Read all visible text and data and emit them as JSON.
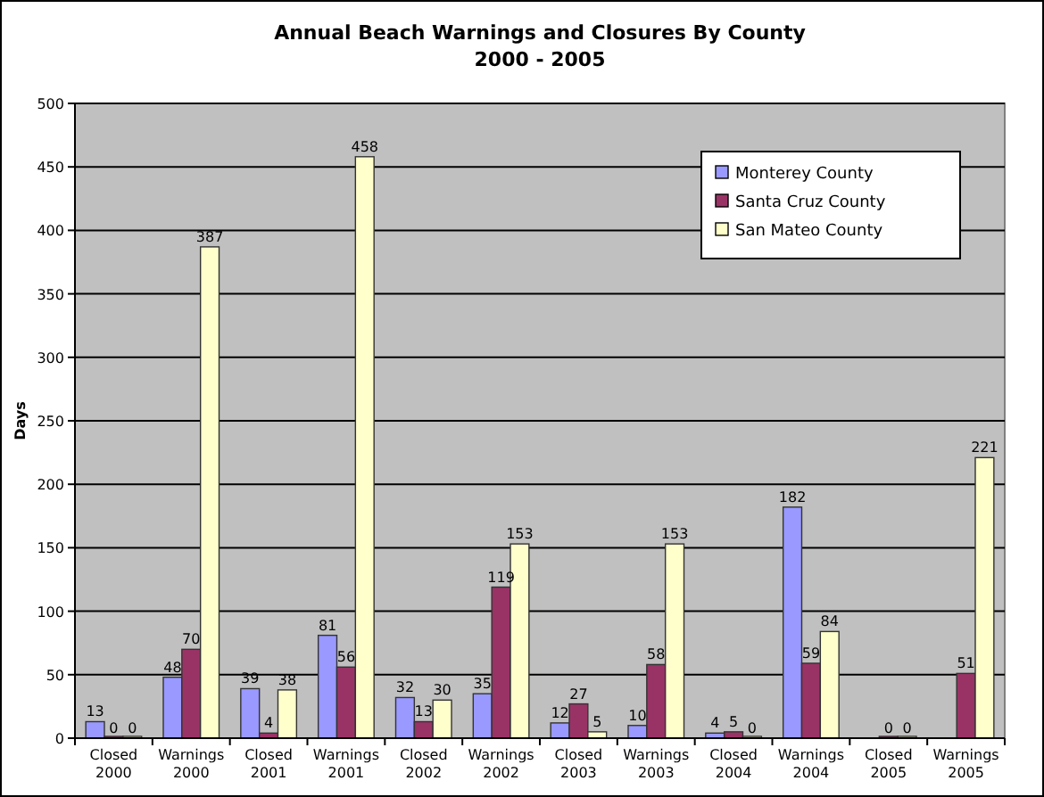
{
  "chart_data": {
    "type": "bar",
    "title": "Annual Beach Warnings and Closures By County",
    "subtitle": "2000 - 2005",
    "ylabel": "Days",
    "categories": [
      "Closed 2000",
      "Warnings 2000",
      "Closed 2001",
      "Warnings 2001",
      "Closed 2002",
      "Warnings 2002",
      "Closed 2003",
      "Warnings 2003",
      "Closed 2004",
      "Warnings 2004",
      "Closed 2005",
      "Warnings 2005"
    ],
    "series": [
      {
        "name": "Monterey County",
        "color": "#9999ff",
        "values": [
          13,
          48,
          39,
          81,
          32,
          35,
          12,
          10,
          4,
          182,
          null,
          null
        ],
        "value_labels": [
          "13",
          "48",
          "39",
          "81",
          "32",
          "35",
          "12",
          "10",
          "4",
          "182",
          null,
          null
        ]
      },
      {
        "name": "Santa Cruz County",
        "color": "#993366",
        "values": [
          0,
          70,
          4,
          56,
          13,
          119,
          27,
          58,
          5,
          59,
          0,
          51
        ],
        "value_labels": [
          "0",
          "70",
          "4",
          "56",
          "13",
          "119",
          "27",
          "58",
          "5",
          "59",
          "0",
          "51"
        ]
      },
      {
        "name": "San Mateo County",
        "color": "#ffffcc",
        "values": [
          0,
          387,
          38,
          458,
          30,
          153,
          5,
          153,
          0,
          84,
          0,
          221
        ],
        "value_labels": [
          "0",
          "387",
          "38",
          "458",
          "30",
          "153",
          "5",
          "153",
          "0",
          "84",
          "0",
          "221"
        ]
      }
    ],
    "ylim": [
      0,
      500
    ],
    "yticks": [
      0,
      50,
      100,
      150,
      200,
      250,
      300,
      350,
      400,
      450,
      500
    ],
    "grid": "y",
    "legend": "top right"
  }
}
